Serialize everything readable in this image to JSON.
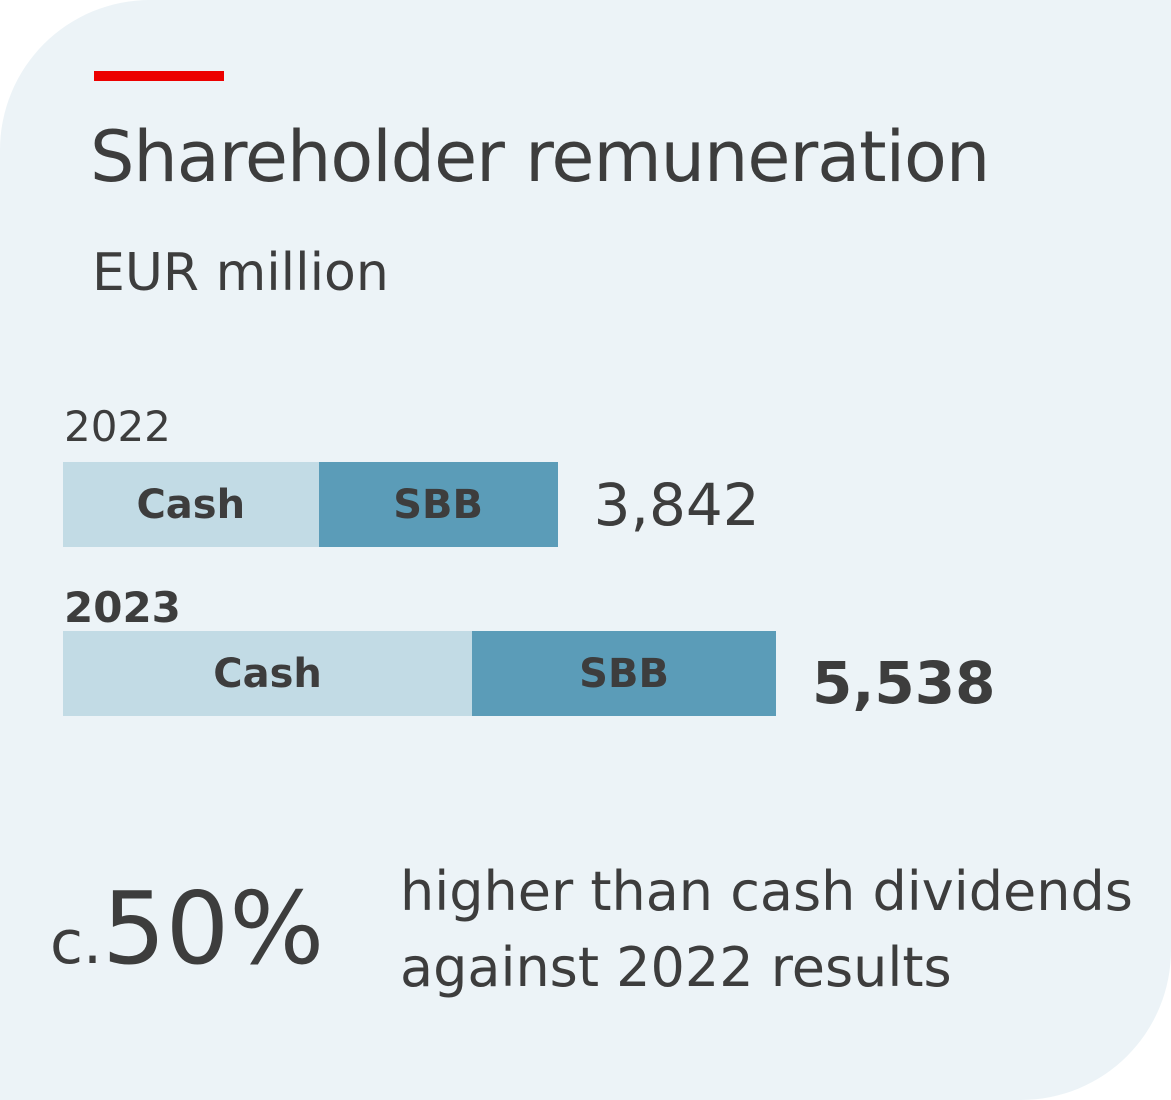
{
  "title": "Shareholder remuneration",
  "subtitle": "EUR million",
  "chart_data": {
    "type": "bar",
    "orientation": "horizontal",
    "stacked": true,
    "title": "Shareholder remuneration",
    "unit": "EUR million",
    "categories": [
      "2022",
      "2023"
    ],
    "totals": [
      "3,842",
      "5,538"
    ],
    "total_values": [
      3842,
      5538
    ],
    "series": [
      {
        "name": "Cash",
        "color": "#c2dbe5",
        "values": [
          1985,
          3178
        ]
      },
      {
        "name": "SBB",
        "color": "#5b9cb8",
        "values": [
          1857,
          2360
        ]
      }
    ],
    "grid": false,
    "legend": "none"
  },
  "kpi": {
    "prefix": "c.",
    "value": "50%",
    "desc_line1": "higher than cash dividends",
    "desc_line2": "against 2022 results"
  },
  "colors": {
    "background": "#ecf3f7",
    "accent": "#ec0000",
    "cash": "#c2dbe5",
    "sbb": "#5b9cb8",
    "text": "#3d3d3d"
  }
}
